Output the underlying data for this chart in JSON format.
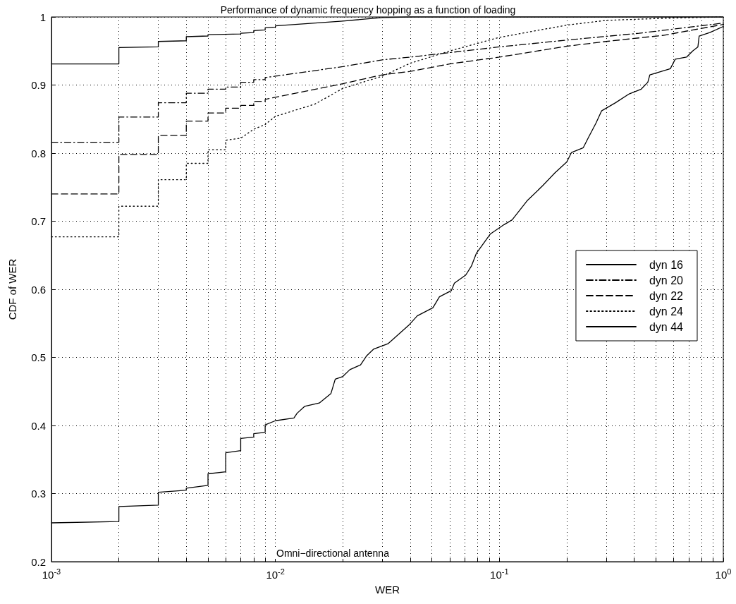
{
  "chart_data": {
    "type": "line",
    "title": "Performance of dynamic frequency hopping as a function of loading",
    "xlabel": "WER",
    "ylabel": "CDF of WER",
    "log": "x",
    "grid": true,
    "legend": "right",
    "marker": "none",
    "xlim": [
      0.001,
      1
    ],
    "ylim": [
      0.2,
      1
    ],
    "xticks": [
      {
        "value": 0.001,
        "label": "10$^{-3}$"
      },
      {
        "value": 0.002,
        "label": null
      },
      {
        "value": 0.003,
        "label": null
      },
      {
        "value": 0.004,
        "label": null
      },
      {
        "value": 0.005,
        "label": null
      },
      {
        "value": 0.006,
        "label": null
      },
      {
        "value": 0.007,
        "label": null
      },
      {
        "value": 0.008,
        "label": null
      },
      {
        "value": 0.009,
        "label": null
      },
      {
        "value": 0.01,
        "label": "10$^{-2}$"
      },
      {
        "value": 0.02,
        "label": null
      },
      {
        "value": 0.03,
        "label": null
      },
      {
        "value": 0.04,
        "label": null
      },
      {
        "value": 0.05,
        "label": null
      },
      {
        "value": 0.06,
        "label": null
      },
      {
        "value": 0.07,
        "label": null
      },
      {
        "value": 0.08,
        "label": null
      },
      {
        "value": 0.09,
        "label": null
      },
      {
        "value": 0.1,
        "label": "10$^{-1}$"
      },
      {
        "value": 0.2,
        "label": null
      },
      {
        "value": 0.3,
        "label": null
      },
      {
        "value": 0.4,
        "label": null
      },
      {
        "value": 0.5,
        "label": null
      },
      {
        "value": 0.6,
        "label": null
      },
      {
        "value": 0.7,
        "label": null
      },
      {
        "value": 0.8,
        "label": null
      },
      {
        "value": 0.9,
        "label": null
      },
      {
        "value": 1,
        "label": "10$^{0}$"
      }
    ],
    "yticks": [
      0.2,
      0.3,
      0.4,
      0.5,
      0.6,
      0.7,
      0.8,
      0.9,
      1
    ],
    "annotations": [
      "Omni−directional antenna"
    ],
    "series": [
      {
        "name": "dyn 16",
        "color": "#000000",
        "line_style": "solid",
        "x": [
          0.001,
          0.002,
          0.002,
          0.003,
          0.003,
          0.004,
          0.004,
          0.005,
          0.005,
          0.007,
          0.007,
          0.008,
          0.008,
          0.009,
          0.009,
          0.01,
          0.01,
          0.02,
          0.03,
          0.04,
          1
        ],
        "values": [
          0.931,
          0.931,
          0.955,
          0.956,
          0.964,
          0.965,
          0.971,
          0.972,
          0.974,
          0.975,
          0.976,
          0.977,
          0.98,
          0.981,
          0.984,
          0.985,
          0.987,
          0.994,
          0.999,
          1,
          1
        ]
      },
      {
        "name": "dyn 20",
        "color": "#000000",
        "line_style": "dashdot",
        "x": [
          0.001,
          0.002,
          0.002,
          0.003,
          0.003,
          0.004,
          0.004,
          0.005,
          0.005,
          0.006,
          0.006,
          0.007,
          0.007,
          0.008,
          0.008,
          0.009,
          0.009,
          0.01,
          0.02,
          0.03,
          0.04,
          0.1,
          0.2,
          0.42,
          1
        ],
        "values": [
          0.816,
          0.816,
          0.853,
          0.853,
          0.874,
          0.874,
          0.888,
          0.888,
          0.894,
          0.894,
          0.897,
          0.897,
          0.904,
          0.904,
          0.908,
          0.908,
          0.911,
          0.913,
          0.927,
          0.937,
          0.941,
          0.956,
          0.966,
          0.976,
          0.991
        ]
      },
      {
        "name": "dyn 22",
        "color": "#000000",
        "line_style": "dashed",
        "x": [
          0.001,
          0.002,
          0.002,
          0.003,
          0.003,
          0.004,
          0.004,
          0.005,
          0.005,
          0.006,
          0.006,
          0.007,
          0.007,
          0.008,
          0.008,
          0.009,
          0.009,
          0.01,
          0.02,
          0.03,
          0.04,
          0.06,
          0.1,
          0.2,
          0.3,
          0.54,
          1
        ],
        "values": [
          0.74,
          0.74,
          0.798,
          0.798,
          0.826,
          0.826,
          0.847,
          0.847,
          0.859,
          0.859,
          0.866,
          0.866,
          0.87,
          0.87,
          0.876,
          0.876,
          0.879,
          0.882,
          0.902,
          0.915,
          0.92,
          0.931,
          0.941,
          0.957,
          0.964,
          0.973,
          0.989
        ]
      },
      {
        "name": "dyn 24",
        "color": "#000000",
        "line_style": "dotted",
        "x": [
          0.001,
          0.002,
          0.002,
          0.003,
          0.003,
          0.004,
          0.004,
          0.005,
          0.005,
          0.006,
          0.006,
          0.007,
          0.008,
          0.009,
          0.01,
          0.015,
          0.02,
          0.03,
          0.04,
          0.06,
          0.1,
          0.2,
          0.3,
          0.54,
          1
        ],
        "values": [
          0.677,
          0.677,
          0.722,
          0.722,
          0.761,
          0.761,
          0.785,
          0.785,
          0.805,
          0.805,
          0.819,
          0.822,
          0.835,
          0.842,
          0.854,
          0.872,
          0.895,
          0.913,
          0.932,
          0.95,
          0.97,
          0.988,
          0.995,
          0.998,
          1
        ]
      },
      {
        "name": "dyn 44",
        "color": "#000000",
        "line_style": "solid",
        "x": [
          0.001,
          0.002,
          0.002,
          0.003,
          0.003,
          0.004,
          0.004,
          0.005,
          0.005,
          0.006,
          0.006,
          0.007,
          0.007,
          0.008,
          0.008,
          0.009,
          0.009,
          0.01,
          0.0121,
          0.0125,
          0.0135,
          0.0157,
          0.0177,
          0.0185,
          0.02,
          0.0215,
          0.024,
          0.0255,
          0.0274,
          0.0318,
          0.0396,
          0.043,
          0.0505,
          0.054,
          0.061,
          0.063,
          0.0708,
          0.075,
          0.079,
          0.091,
          0.105,
          0.114,
          0.133,
          0.156,
          0.177,
          0.2,
          0.21,
          0.237,
          0.25,
          0.27,
          0.286,
          0.33,
          0.38,
          0.43,
          0.46,
          0.47,
          0.58,
          0.61,
          0.685,
          0.73,
          0.77,
          0.78,
          0.87,
          1
        ],
        "values": [
          0.257,
          0.259,
          0.281,
          0.283,
          0.302,
          0.305,
          0.308,
          0.312,
          0.329,
          0.332,
          0.36,
          0.363,
          0.381,
          0.383,
          0.388,
          0.39,
          0.401,
          0.407,
          0.411,
          0.418,
          0.428,
          0.433,
          0.447,
          0.468,
          0.472,
          0.482,
          0.489,
          0.502,
          0.512,
          0.52,
          0.548,
          0.561,
          0.573,
          0.589,
          0.598,
          0.609,
          0.621,
          0.634,
          0.653,
          0.681,
          0.695,
          0.702,
          0.73,
          0.752,
          0.771,
          0.787,
          0.801,
          0.808,
          0.823,
          0.844,
          0.862,
          0.874,
          0.887,
          0.894,
          0.904,
          0.915,
          0.924,
          0.938,
          0.941,
          0.95,
          0.956,
          0.972,
          0.977,
          0.986
        ]
      }
    ]
  }
}
